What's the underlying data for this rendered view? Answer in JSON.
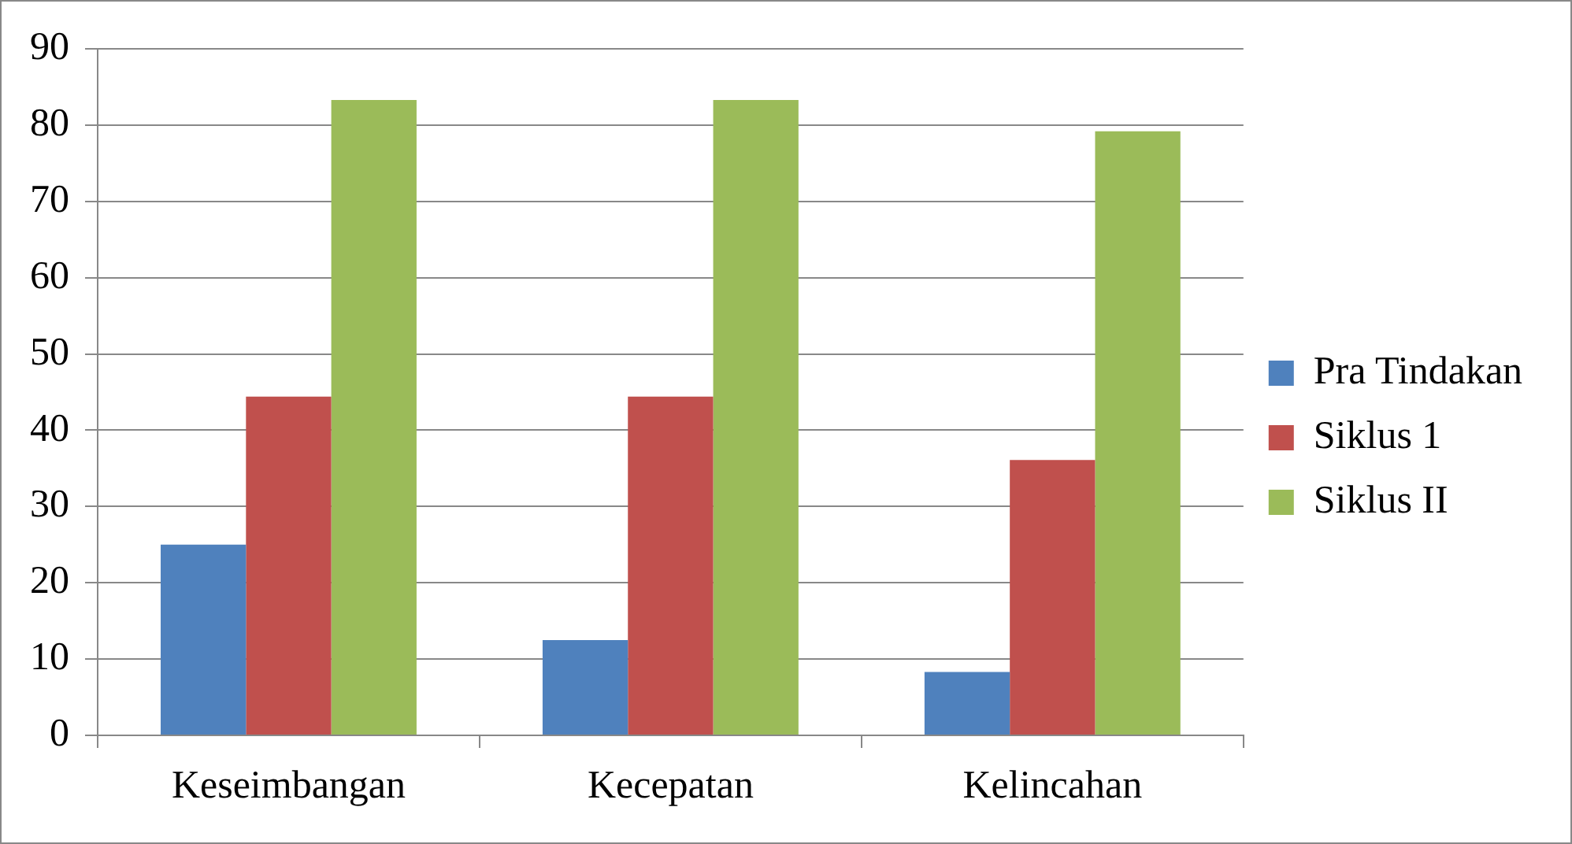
{
  "chart_data": {
    "type": "bar",
    "categories": [
      "Keseimbangan",
      "Kecepatan",
      "Kelincahan"
    ],
    "series": [
      {
        "name": "Pra Tindakan",
        "color": "#4f81bd",
        "values": [
          25,
          12.5,
          8.3
        ]
      },
      {
        "name": "Siklus 1",
        "color": "#c0504d",
        "values": [
          44.4,
          44.4,
          36.1
        ]
      },
      {
        "name": "Siklus II",
        "color": "#9bbb59",
        "values": [
          83.3,
          83.3,
          79.2
        ]
      }
    ],
    "ylim": [
      0,
      90
    ],
    "yticks": [
      0,
      10,
      20,
      30,
      40,
      50,
      60,
      70,
      80,
      90
    ],
    "grid": "y",
    "legend": "right"
  }
}
